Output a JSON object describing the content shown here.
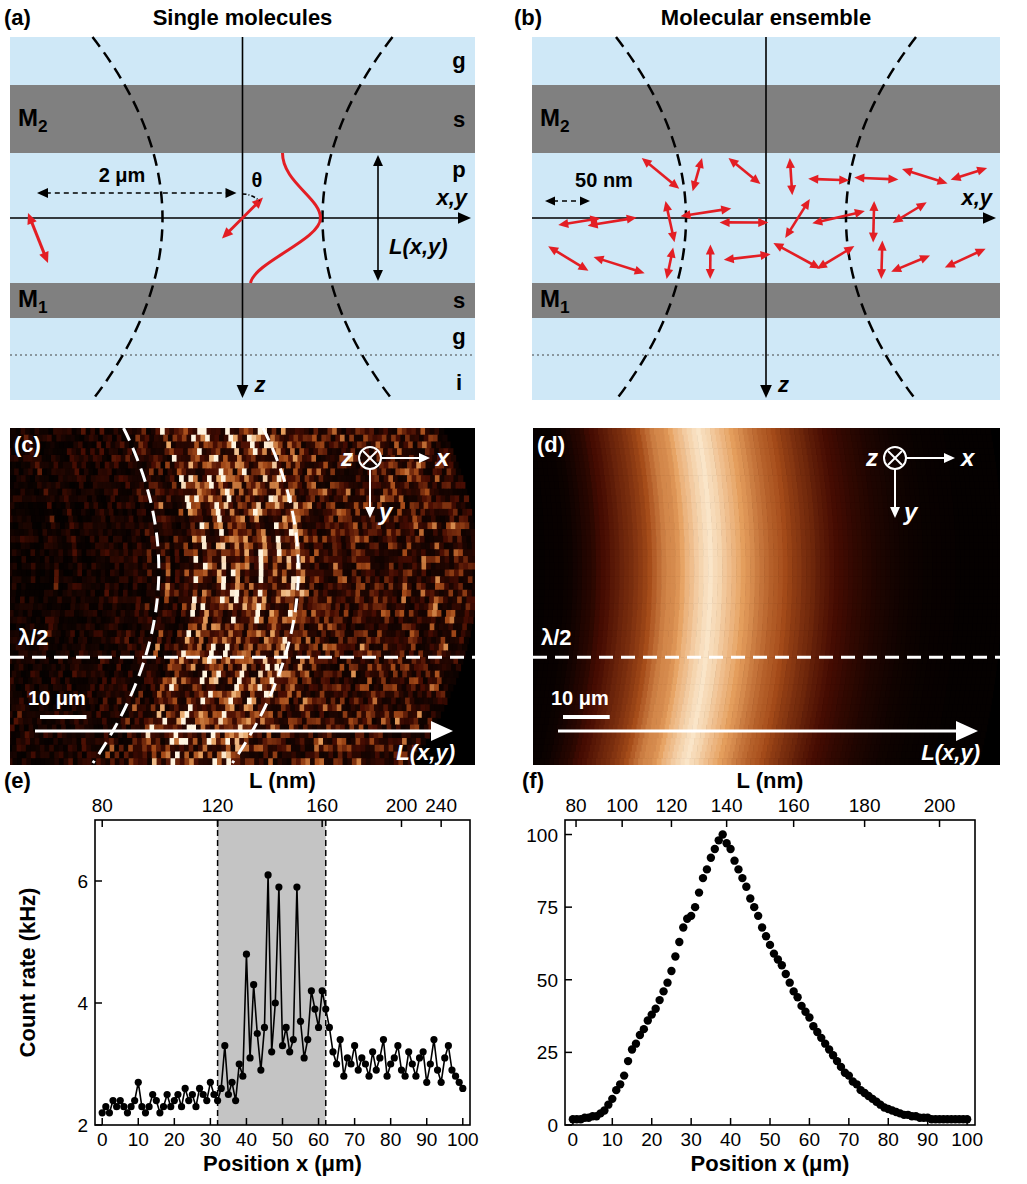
{
  "schematics": [
    {
      "panel": "(a)",
      "title": "Single molecules",
      "layers": [
        "g",
        "s",
        "p",
        "s",
        "g",
        "i"
      ],
      "mirrors": [
        "M2",
        "M1"
      ],
      "axis_labels": [
        "x,y",
        "z"
      ],
      "distance": "2 μm",
      "angle": "θ",
      "thickness": "L(x,y)"
    },
    {
      "panel": "(b)",
      "title": "Molecular ensemble",
      "mirrors": [
        "M2",
        "M1"
      ],
      "axis_labels": [
        "x,y",
        "z"
      ],
      "distance": "50 nm"
    }
  ],
  "maps": [
    {
      "panel": "(c)",
      "axes": [
        "z",
        "x",
        "y"
      ],
      "line_label": "λ/2",
      "arrow_label": "L(x,y)",
      "scale_bar": {
        "value": 10,
        "label": "10 μm"
      },
      "xlim": [
        0,
        100
      ]
    },
    {
      "panel": "(d)",
      "axes": [
        "z",
        "x",
        "y"
      ],
      "line_label": "λ/2",
      "arrow_label": "L(x,y)",
      "scale_bar": {
        "value": 10,
        "label": "10 μm"
      },
      "xlim": [
        0,
        100
      ]
    }
  ],
  "chart_data": [
    {
      "type": "line",
      "panel": "(e)",
      "x_label": "Position x (μm)",
      "y_label": "Count rate (kHz)",
      "x2_label": "L (nm)",
      "xlim": [
        -2,
        102
      ],
      "ylim": [
        2,
        7
      ],
      "xticks": [
        0,
        10,
        20,
        30,
        40,
        50,
        60,
        70,
        80,
        90,
        100
      ],
      "yticks": [
        2,
        4,
        6
      ],
      "x2ticks": [
        {
          "value": 0,
          "label": "80"
        },
        {
          "value": 32,
          "label": "120"
        },
        {
          "value": 61,
          "label": "160"
        },
        {
          "value": 83,
          "label": "200"
        },
        {
          "value": 94,
          "label": "240"
        }
      ],
      "highlight": [
        32,
        62
      ],
      "color": "#000000",
      "marker": "circle",
      "line_style": "solid",
      "x": [
        0,
        1,
        2,
        3,
        4,
        5,
        6,
        7,
        8,
        9,
        10,
        11,
        12,
        13,
        14,
        15,
        16,
        17,
        18,
        19,
        20,
        21,
        22,
        23,
        24,
        25,
        26,
        27,
        28,
        29,
        30,
        31,
        32,
        33,
        34,
        35,
        36,
        37,
        38,
        39,
        40,
        41,
        42,
        43,
        44,
        45,
        46,
        47,
        48,
        49,
        50,
        51,
        52,
        53,
        54,
        55,
        56,
        57,
        58,
        59,
        60,
        61,
        62,
        63,
        64,
        65,
        66,
        67,
        68,
        69,
        70,
        71,
        72,
        73,
        74,
        75,
        76,
        77,
        78,
        79,
        80,
        81,
        82,
        83,
        84,
        85,
        86,
        87,
        88,
        89,
        90,
        91,
        92,
        93,
        94,
        95,
        96,
        97,
        98,
        99,
        100
      ],
      "values": [
        2.2,
        2.3,
        2.2,
        2.4,
        2.3,
        2.4,
        2.3,
        2.2,
        2.3,
        2.4,
        2.7,
        2.3,
        2.2,
        2.3,
        2.5,
        2.4,
        2.2,
        2.3,
        2.5,
        2.3,
        2.4,
        2.5,
        2.3,
        2.6,
        2.4,
        2.5,
        2.3,
        2.6,
        2.5,
        2.4,
        2.7,
        2.5,
        2.4,
        2.6,
        3.3,
        2.5,
        2.7,
        2.4,
        3.0,
        2.8,
        4.8,
        3.1,
        4.3,
        3.5,
        2.9,
        3.6,
        6.1,
        3.2,
        4.0,
        5.9,
        3.3,
        3.6,
        3.2,
        3.4,
        5.9,
        3.7,
        3.1,
        3.4,
        4.2,
        3.9,
        3.6,
        4.2,
        3.9,
        3.6,
        3.2,
        3.0,
        3.4,
        2.8,
        3.1,
        3.0,
        3.3,
        2.9,
        3.1,
        3.0,
        2.8,
        3.2,
        2.9,
        3.1,
        3.4,
        2.8,
        3.0,
        3.1,
        3.3,
        2.9,
        2.8,
        3.2,
        3.0,
        2.8,
        3.1,
        3.2,
        2.7,
        3.0,
        3.4,
        2.9,
        2.7,
        3.1,
        3.3,
        2.9,
        2.8,
        2.7,
        2.6
      ]
    },
    {
      "type": "scatter",
      "panel": "(f)",
      "x_label": "Position x (μm)",
      "x2_label": "L (nm)",
      "xlim": [
        -2,
        102
      ],
      "ylim": [
        0,
        105
      ],
      "xticks": [
        0,
        10,
        20,
        30,
        40,
        50,
        60,
        70,
        80,
        90,
        100
      ],
      "yticks": [
        0,
        25,
        50,
        75,
        100
      ],
      "x2ticks": [
        {
          "value": 0.8,
          "label": "80"
        },
        {
          "value": 12.5,
          "label": "100"
        },
        {
          "value": 25,
          "label": "120"
        },
        {
          "value": 39,
          "label": "140"
        },
        {
          "value": 56,
          "label": "160"
        },
        {
          "value": 74,
          "label": "180"
        },
        {
          "value": 93,
          "label": "200"
        }
      ],
      "color": "#000000",
      "marker": "circle",
      "line_style": "none",
      "x": [
        0,
        1,
        2,
        3,
        4,
        5,
        6,
        7,
        8,
        9,
        10,
        11,
        12,
        13,
        14,
        15,
        16,
        17,
        18,
        19,
        20,
        21,
        22,
        23,
        24,
        25,
        26,
        27,
        28,
        29,
        30,
        31,
        32,
        33,
        34,
        35,
        36,
        37,
        38,
        39,
        40,
        41,
        42,
        43,
        44,
        45,
        46,
        47,
        48,
        49,
        50,
        51,
        52,
        53,
        54,
        55,
        56,
        57,
        58,
        59,
        60,
        61,
        62,
        63,
        64,
        65,
        66,
        67,
        68,
        69,
        70,
        71,
        72,
        73,
        74,
        75,
        76,
        77,
        78,
        79,
        80,
        81,
        82,
        83,
        84,
        85,
        86,
        87,
        88,
        89,
        90,
        91,
        92,
        93,
        94,
        95,
        96,
        97,
        98,
        99,
        100
      ],
      "values": [
        2,
        2,
        2,
        2.5,
        2.5,
        3,
        3,
        4,
        5,
        7,
        9,
        12,
        14,
        17,
        22,
        26,
        28,
        31,
        33,
        36,
        38,
        40,
        43,
        46,
        49,
        53,
        58,
        63,
        68,
        71,
        72,
        75,
        80,
        85,
        88,
        92,
        95,
        98,
        100,
        97,
        95,
        91,
        88,
        85,
        82,
        78,
        75,
        72,
        68,
        65,
        62,
        59,
        57,
        55,
        52,
        49,
        46,
        44,
        41,
        39,
        37,
        34,
        32,
        30,
        28,
        26,
        24,
        22,
        20,
        18,
        17,
        15,
        14,
        12,
        11,
        10,
        9,
        8,
        7,
        6,
        5.5,
        5,
        4.5,
        4,
        3.5,
        3.5,
        3,
        3,
        2.5,
        2.5,
        2.5,
        2,
        2,
        2,
        2,
        2,
        2,
        2,
        2,
        2,
        2
      ]
    }
  ]
}
